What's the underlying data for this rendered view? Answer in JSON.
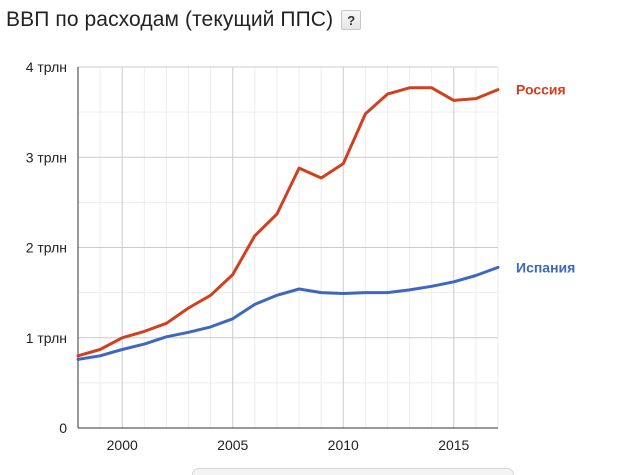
{
  "header": {
    "title": "ВВП по расходам (текущий ППС)",
    "help_label": "?"
  },
  "chart_data": {
    "type": "line",
    "title": "ВВП по расходам (текущий ППС)",
    "xlabel": "",
    "ylabel": "",
    "xlim": [
      1998,
      2017
    ],
    "ylim": [
      0,
      4
    ],
    "x_ticks": [
      2000,
      2005,
      2010,
      2015
    ],
    "y_ticks": [
      {
        "value": 0,
        "label": "0"
      },
      {
        "value": 1,
        "label": "1 трлн"
      },
      {
        "value": 2,
        "label": "2 трлн"
      },
      {
        "value": 3,
        "label": "3 трлн"
      },
      {
        "value": 4,
        "label": "4 трлн"
      }
    ],
    "grid": true,
    "legend": "inline-right",
    "x": [
      1998,
      1999,
      2000,
      2001,
      2002,
      2003,
      2004,
      2005,
      2006,
      2007,
      2008,
      2009,
      2010,
      2011,
      2012,
      2013,
      2014,
      2015,
      2016,
      2017
    ],
    "series": [
      {
        "name": "Россия",
        "color": "#d0401e",
        "values": [
          0.8,
          0.87,
          1.0,
          1.07,
          1.16,
          1.33,
          1.47,
          1.7,
          2.13,
          2.37,
          2.88,
          2.77,
          2.93,
          3.48,
          3.7,
          3.77,
          3.77,
          3.63,
          3.65,
          3.75
        ]
      },
      {
        "name": "Испания",
        "color": "#3d67c0",
        "values": [
          0.76,
          0.8,
          0.87,
          0.93,
          1.01,
          1.06,
          1.12,
          1.21,
          1.37,
          1.47,
          1.54,
          1.5,
          1.49,
          1.5,
          1.5,
          1.53,
          1.57,
          1.62,
          1.69,
          1.78
        ]
      }
    ]
  }
}
